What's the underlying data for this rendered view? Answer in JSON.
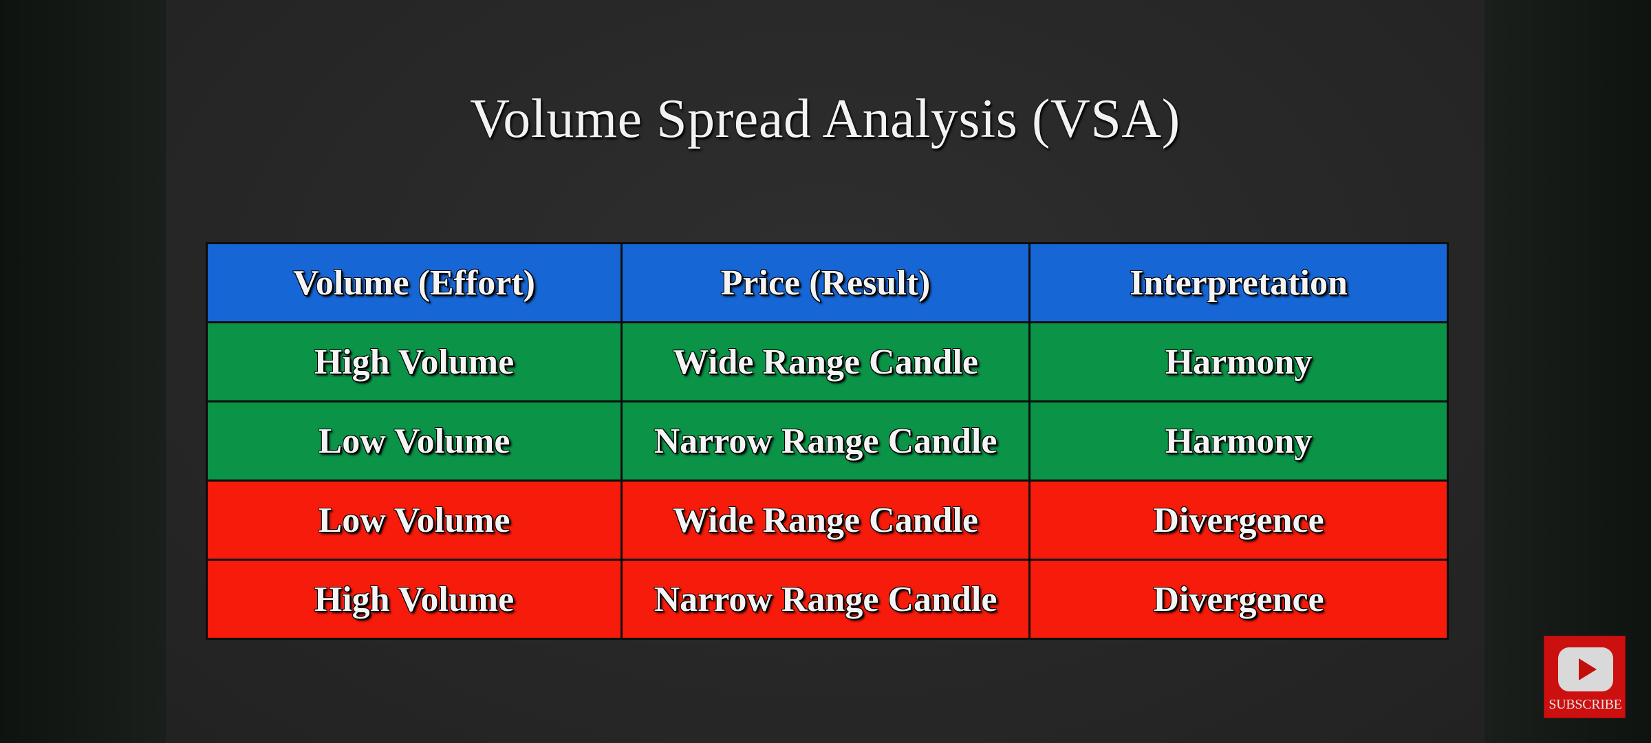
{
  "slide": {
    "title": "Volume Spread Analysis (VSA)"
  },
  "table": {
    "headers": [
      "Volume (Effort)",
      "Price (Result)",
      "Interpretation"
    ],
    "rows": [
      [
        "High Volume",
        "Wide Range Candle",
        "Harmony"
      ],
      [
        "Low Volume",
        "Narrow Range Candle",
        "Harmony"
      ],
      [
        "Low Volume",
        "Wide Range Candle",
        "Divergence"
      ],
      [
        "High Volume",
        "Narrow Range Candle",
        "Divergence"
      ]
    ],
    "colors": {
      "header": "#1666d6",
      "harmony": "#0b9448",
      "divergence": "#f71b0b"
    }
  },
  "subscribe": {
    "label": "SUBSCRIBE",
    "icon": "play-icon",
    "color": "#cc0f0f"
  }
}
